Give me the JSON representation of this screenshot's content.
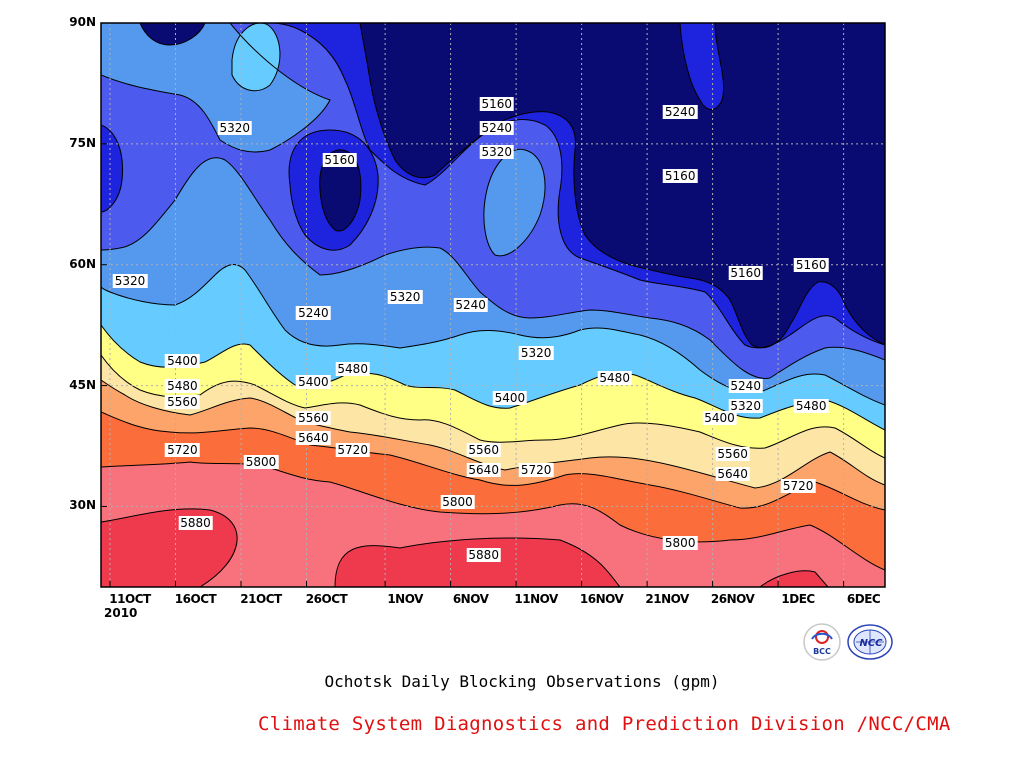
{
  "chart_data": {
    "type": "contour",
    "title": "Ochotsk Daily Blocking Observations (gpm)",
    "xlabel": "",
    "ylabel": "",
    "x_tick_labels": [
      "11OCT",
      "16OCT",
      "21OCT",
      "26OCT",
      "1NOV",
      "6NOV",
      "11NOV",
      "16NOV",
      "21NOV",
      "26NOV",
      "1DEC",
      "6DEC"
    ],
    "x_year_label": "2010",
    "x_range": [
      "11OCT2010",
      "7DEC2010"
    ],
    "y_tick_labels": [
      "90N",
      "75N",
      "60N",
      "45N",
      "30N"
    ],
    "ylim": [
      20,
      90
    ],
    "contour_levels": [
      5160,
      5240,
      5320,
      5400,
      5480,
      5560,
      5640,
      5720,
      5800,
      5880
    ],
    "contour_labels": [
      {
        "text": "5320",
        "date": "19OCT",
        "lat": 77
      },
      {
        "text": "5160",
        "date": "27OCT",
        "lat": 73
      },
      {
        "text": "5160",
        "date": "8NOV",
        "lat": 80
      },
      {
        "text": "5240",
        "date": "8NOV",
        "lat": 77
      },
      {
        "text": "5320",
        "date": "8NOV",
        "lat": 74
      },
      {
        "text": "5240",
        "date": "22NOV",
        "lat": 79
      },
      {
        "text": "5160",
        "date": "22NOV",
        "lat": 71
      },
      {
        "text": "5320",
        "date": "11OCT",
        "lat": 58
      },
      {
        "text": "5240",
        "date": "25OCT",
        "lat": 54
      },
      {
        "text": "5320",
        "date": "1NOV",
        "lat": 56
      },
      {
        "text": "5240",
        "date": "6NOV",
        "lat": 55
      },
      {
        "text": "5160",
        "date": "27NOV",
        "lat": 59
      },
      {
        "text": "5160",
        "date": "2DEC",
        "lat": 60
      },
      {
        "text": "5400",
        "date": "15OCT",
        "lat": 48
      },
      {
        "text": "5480",
        "date": "15OCT",
        "lat": 45
      },
      {
        "text": "5560",
        "date": "15OCT",
        "lat": 43
      },
      {
        "text": "5720",
        "date": "15OCT",
        "lat": 37
      },
      {
        "text": "5800",
        "date": "21OCT",
        "lat": 35.5
      },
      {
        "text": "5880",
        "date": "16OCT",
        "lat": 28
      },
      {
        "text": "5400",
        "date": "25OCT",
        "lat": 45.5
      },
      {
        "text": "5480",
        "date": "28OCT",
        "lat": 47
      },
      {
        "text": "5560",
        "date": "25OCT",
        "lat": 41
      },
      {
        "text": "5640",
        "date": "25OCT",
        "lat": 38.5
      },
      {
        "text": "5720",
        "date": "28OCT",
        "lat": 37
      },
      {
        "text": "5320",
        "date": "11NOV",
        "lat": 49
      },
      {
        "text": "5400",
        "date": "9NOV",
        "lat": 43.5
      },
      {
        "text": "5560",
        "date": "7NOV",
        "lat": 37
      },
      {
        "text": "5640",
        "date": "7NOV",
        "lat": 34.5
      },
      {
        "text": "5720",
        "date": "11NOV",
        "lat": 34.5
      },
      {
        "text": "5800",
        "date": "5NOV",
        "lat": 30.5
      },
      {
        "text": "5880",
        "date": "7NOV",
        "lat": 24
      },
      {
        "text": "5480",
        "date": "17NOV",
        "lat": 46
      },
      {
        "text": "5240",
        "date": "27NOV",
        "lat": 45
      },
      {
        "text": "5320",
        "date": "27NOV",
        "lat": 42.5
      },
      {
        "text": "5400",
        "date": "25NOV",
        "lat": 41
      },
      {
        "text": "5480",
        "date": "2DEC",
        "lat": 42.5
      },
      {
        "text": "5560",
        "date": "26NOV",
        "lat": 36.5
      },
      {
        "text": "5640",
        "date": "26NOV",
        "lat": 34
      },
      {
        "text": "5720",
        "date": "1DEC",
        "lat": 32.5
      },
      {
        "text": "5800",
        "date": "22NOV",
        "lat": 25.5
      }
    ],
    "fill_colors": {
      "gt_5880": "#ef3a4e",
      "5800_5880": "#f7727d",
      "5720_5800": "#fb6e3b",
      "5640_5720": "#fca46a",
      "5560_5640": "#fde6a5",
      "5480_5560": "#ffff86",
      "5400_5480": "#66ccff",
      "5320_5400": "#5599ee",
      "5240_5320": "#4d5aee",
      "5160_5240": "#1e23dd",
      "lt_5160": "#0a0a73"
    },
    "grid": true
  },
  "footer": {
    "title": "Ochotsk Daily Blocking Observations (gpm)",
    "credit": "Climate System Diagnostics and Prediction Division /NCC/CMA",
    "logo_left_text": "BCC",
    "logo_right_text": "NCC"
  }
}
